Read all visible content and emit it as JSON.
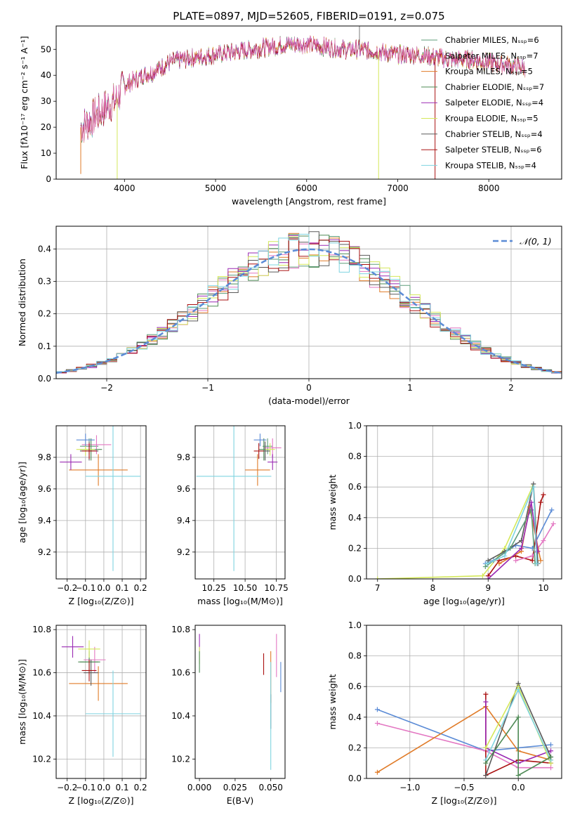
{
  "figure_title": "PLATE=0897, MJD=52605, FIBERID=0191, z=0.075",
  "colors": {
    "Chabrier MILES": "#5f9d7a",
    "Salpeter MILES": "#e377c2",
    "Kroupa MILES": "#e07b28",
    "Chabrier ELODIE": "#4e8a55",
    "Salpeter ELODIE": "#9a29b3",
    "Kroupa ELODIE": "#d4e85a",
    "Chabrier STELIB": "#5a5a5a",
    "Salpeter STELIB": "#aa1111",
    "Kroupa STELIB": "#7fd4e0",
    "normal": "#5b8bd6",
    "blue_extra": "#5b8bd6",
    "grid": "#b0b0b0"
  },
  "chart_data": [
    {
      "id": "spectrum",
      "type": "line",
      "title": "PLATE=0897, MJD=52605, FIBERID=0191, z=0.075",
      "xlabel": "wavelength [Angstrom, rest frame]",
      "ylabel": "Flux [fλ10⁻¹⁷ erg cm⁻² s⁻¹ A⁻¹]",
      "xlim": [
        3250,
        8800
      ],
      "ylim": [
        0,
        59
      ],
      "xticks": [
        4000,
        5000,
        6000,
        7000,
        8000
      ],
      "yticks": [
        0,
        10,
        20,
        30,
        40,
        50
      ],
      "grid": false,
      "legend": "top-right",
      "continuum": {
        "x": [
          3520,
          3600,
          3700,
          3800,
          3900,
          3950,
          4000,
          4100,
          4200,
          4300,
          4400,
          4500,
          4600,
          4800,
          5000,
          5200,
          5400,
          5600,
          5800,
          6000,
          6200,
          6400,
          6600,
          6800,
          7000,
          7200,
          7400,
          7600,
          7800,
          8000,
          8200,
          8400
        ],
        "y": [
          20,
          22,
          25,
          28,
          30,
          33,
          36,
          38,
          40,
          41,
          43,
          45,
          46,
          47,
          48,
          49,
          50,
          51,
          52,
          52,
          51,
          50,
          50,
          49,
          48,
          48,
          47,
          46,
          46,
          45,
          44,
          43
        ]
      },
      "series": [
        {
          "name": "Chabrier MILES, Nₛₛₚ=6"
        },
        {
          "name": "Salpeter MILES, Nₛₛₚ=7"
        },
        {
          "name": "Kroupa MILES, Nₛₛₚ=5"
        },
        {
          "name": "Chabrier ELODIE, Nₛₛₚ=7"
        },
        {
          "name": "Salpeter ELODIE, Nₛₛₚ=4"
        },
        {
          "name": "Kroupa ELODIE, Nₛₛₚ=5"
        },
        {
          "name": "Chabrier STELIB, Nₛₛₚ=4"
        },
        {
          "name": "Salpeter STELIB, Nₛₛₚ=6"
        },
        {
          "name": "Kroupa STELIB, Nₛₛₚ=4"
        }
      ]
    },
    {
      "id": "residuals",
      "type": "line",
      "xlabel": "(data-model)/error",
      "ylabel": "Normed distribution",
      "xlim": [
        -2.5,
        2.5
      ],
      "ylim": [
        0,
        0.47
      ],
      "xticks": [
        -2,
        -1,
        0,
        1,
        2
      ],
      "yticks": [
        0.0,
        0.1,
        0.2,
        0.3,
        0.4
      ],
      "grid": true,
      "legend": "top-right",
      "legend_label": "𝒩(0, 1)",
      "bin_width": 0.1
    },
    {
      "id": "z_age",
      "type": "scatter",
      "xlabel": "Z [log₁₀(Z/Z⊙)]",
      "ylabel": "age  [log₁₀(age/yr)]",
      "xlim": [
        -0.26,
        0.23
      ],
      "ylim": [
        9.03,
        10.0
      ],
      "xticks": [
        -0.2,
        -0.1,
        0.0,
        0.1,
        0.2
      ],
      "yticks": [
        9.2,
        9.4,
        9.6,
        9.8
      ],
      "grid": true,
      "points": [
        {
          "s": "Chabrier MILES",
          "x": -0.08,
          "y": 9.87,
          "xerr": 0.05,
          "yerr": 0.05
        },
        {
          "s": "Salpeter MILES",
          "x": -0.04,
          "y": 9.88,
          "xerr": 0.08,
          "yerr": 0.06
        },
        {
          "s": "Kroupa MILES",
          "x": -0.03,
          "y": 9.72,
          "xerr": 0.16,
          "yerr": 0.1
        },
        {
          "s": "Chabrier ELODIE",
          "x": -0.07,
          "y": 9.85,
          "xerr": 0.06,
          "yerr": 0.07
        },
        {
          "s": "Salpeter ELODIE",
          "x": -0.18,
          "y": 9.77,
          "xerr": 0.06,
          "yerr": 0.05
        },
        {
          "s": "Kroupa ELODIE",
          "x": -0.1,
          "y": 9.85,
          "xerr": 0.05,
          "yerr": 0.04
        },
        {
          "s": "Chabrier STELIB",
          "x": -0.08,
          "y": 9.84,
          "xerr": 0.05,
          "yerr": 0.06
        },
        {
          "s": "Salpeter STELIB",
          "x": -0.08,
          "y": 9.84,
          "xerr": 0.04,
          "yerr": 0.05
        },
        {
          "s": "Kroupa STELIB",
          "x": 0.05,
          "y": 9.68,
          "xerr": 0.15,
          "yerr": 0.6
        },
        {
          "s": "blue_extra",
          "x": -0.1,
          "y": 9.91,
          "xerr": 0.05,
          "yerr": 0.04
        }
      ]
    },
    {
      "id": "mass_age",
      "type": "scatter",
      "xlabel": "mass [log₁₀(M/M⊙)]",
      "xlim": [
        10.1,
        10.82
      ],
      "ylim": [
        9.03,
        10.0
      ],
      "xticks": [
        10.25,
        10.5,
        10.75
      ],
      "yticks": [
        9.2,
        9.4,
        9.6,
        9.8
      ],
      "grid": true,
      "points": [
        {
          "s": "Chabrier MILES",
          "x": 10.68,
          "y": 9.87,
          "xerr": 0.04,
          "yerr": 0.05
        },
        {
          "s": "Salpeter MILES",
          "x": 10.72,
          "y": 9.86,
          "xerr": 0.07,
          "yerr": 0.06
        },
        {
          "s": "Kroupa MILES",
          "x": 10.6,
          "y": 9.72,
          "xerr": 0.1,
          "yerr": 0.1
        },
        {
          "s": "Chabrier ELODIE",
          "x": 10.65,
          "y": 9.85,
          "xerr": 0.04,
          "yerr": 0.07
        },
        {
          "s": "Salpeter ELODIE",
          "x": 10.72,
          "y": 9.77,
          "xerr": 0.04,
          "yerr": 0.05
        },
        {
          "s": "Kroupa ELODIE",
          "x": 10.7,
          "y": 9.85,
          "xerr": 0.04,
          "yerr": 0.04
        },
        {
          "s": "Chabrier STELIB",
          "x": 10.66,
          "y": 9.84,
          "xerr": 0.04,
          "yerr": 0.06
        },
        {
          "s": "Salpeter STELIB",
          "x": 10.61,
          "y": 9.84,
          "xerr": 0.04,
          "yerr": 0.05
        },
        {
          "s": "Kroupa STELIB",
          "x": 10.41,
          "y": 9.68,
          "xerr": 0.3,
          "yerr": 0.6
        },
        {
          "s": "blue_extra",
          "x": 10.62,
          "y": 9.91,
          "xerr": 0.05,
          "yerr": 0.04
        }
      ]
    },
    {
      "id": "age_weight",
      "type": "line",
      "xlabel": "age  [log₁₀(age/yr)]",
      "ylabel": "mass weight",
      "xlim": [
        6.8,
        10.33
      ],
      "ylim": [
        0,
        1.0
      ],
      "xticks": [
        7,
        8,
        9,
        10
      ],
      "yticks": [
        0.0,
        0.2,
        0.4,
        0.6,
        0.8,
        1.0
      ],
      "grid": true,
      "series": [
        {
          "s": "Kroupa ELODIE",
          "x": [
            7.0,
            8.9,
            9.3,
            9.8
          ],
          "y": [
            0.0,
            0.02,
            0.2,
            0.6
          ]
        },
        {
          "s": "blue_extra",
          "x": [
            8.95,
            9.1,
            9.5,
            9.8,
            10.15
          ],
          "y": [
            0.1,
            0.12,
            0.22,
            0.2,
            0.45
          ]
        },
        {
          "s": "Chabrier STELIB",
          "x": [
            9.0,
            9.3,
            9.6,
            9.82,
            9.9
          ],
          "y": [
            0.12,
            0.18,
            0.25,
            0.62,
            0.1
          ]
        },
        {
          "s": "Salpeter STELIB",
          "x": [
            9.0,
            9.2,
            9.5,
            9.8,
            9.95,
            10.0
          ],
          "y": [
            0.02,
            0.12,
            0.15,
            0.12,
            0.5,
            0.55
          ]
        },
        {
          "s": "Salpeter MILES",
          "x": [
            9.5,
            9.8,
            10.0,
            10.18
          ],
          "y": [
            0.12,
            0.15,
            0.25,
            0.36
          ]
        },
        {
          "s": "Kroupa MILES",
          "x": [
            9.2,
            9.6,
            9.75,
            9.95
          ],
          "y": [
            0.1,
            0.18,
            0.47,
            0.12
          ]
        },
        {
          "s": "Chabrier MILES",
          "x": [
            8.95,
            9.4,
            9.78,
            9.85
          ],
          "y": [
            0.08,
            0.2,
            0.45,
            0.1
          ]
        },
        {
          "s": "Salpeter ELODIE",
          "x": [
            9.0,
            9.6,
            9.78,
            9.9
          ],
          "y": [
            0.0,
            0.2,
            0.5,
            0.18
          ]
        },
        {
          "s": "Kroupa STELIB",
          "x": [
            8.98,
            9.3,
            9.82,
            9.88
          ],
          "y": [
            0.1,
            0.15,
            0.6,
            0.1
          ]
        }
      ]
    },
    {
      "id": "z_mass",
      "type": "scatter",
      "xlabel": "Z [log₁₀(Z/Z⊙)]",
      "ylabel": "mass [log₁₀(M/M⊙)]",
      "xlim": [
        -0.26,
        0.23
      ],
      "ylim": [
        10.11,
        10.82
      ],
      "xticks": [
        -0.2,
        -0.1,
        0.0,
        0.1,
        0.2
      ],
      "yticks": [
        10.2,
        10.4,
        10.6,
        10.8
      ],
      "grid": true,
      "points": [
        {
          "s": "Chabrier MILES",
          "x": -0.08,
          "y": 10.65,
          "xerr": 0.05,
          "yerr": 0.06
        },
        {
          "s": "Salpeter MILES",
          "x": -0.05,
          "y": 10.66,
          "xerr": 0.06,
          "yerr": 0.06
        },
        {
          "s": "Kroupa MILES",
          "x": -0.03,
          "y": 10.55,
          "xerr": 0.16,
          "yerr": 0.08
        },
        {
          "s": "Chabrier ELODIE",
          "x": -0.08,
          "y": 10.65,
          "xerr": 0.06,
          "yerr": 0.05
        },
        {
          "s": "Salpeter ELODIE",
          "x": -0.17,
          "y": 10.72,
          "xerr": 0.06,
          "yerr": 0.05
        },
        {
          "s": "Kroupa ELODIE",
          "x": -0.08,
          "y": 10.71,
          "xerr": 0.06,
          "yerr": 0.04
        },
        {
          "s": "Chabrier STELIB",
          "x": -0.07,
          "y": 10.6,
          "xerr": 0.04,
          "yerr": 0.06
        },
        {
          "s": "Salpeter STELIB",
          "x": -0.08,
          "y": 10.61,
          "xerr": 0.04,
          "yerr": 0.05
        },
        {
          "s": "Kroupa STELIB",
          "x": 0.05,
          "y": 10.41,
          "xerr": 0.15,
          "yerr": 0.2
        }
      ]
    },
    {
      "id": "ebv_mass",
      "type": "scatter",
      "xlabel": "E(B-V)",
      "xlim": [
        -0.003,
        0.06
      ],
      "ylim": [
        10.11,
        10.82
      ],
      "xticks": [
        0.0,
        0.025,
        0.05
      ],
      "yticks": [
        10.2,
        10.4,
        10.6,
        10.8
      ],
      "grid": false,
      "points": [
        {
          "s": "Salpeter ELODIE",
          "x": 0.0,
          "y": 10.74,
          "xerr": 0.0,
          "yerr": 0.04
        },
        {
          "s": "Kroupa ELODIE",
          "x": 0.0,
          "y": 10.68,
          "xerr": 0.0,
          "yerr": 0.04
        },
        {
          "s": "Chabrier ELODIE",
          "x": 0.0,
          "y": 10.65,
          "xerr": 0.0,
          "yerr": 0.05
        },
        {
          "s": "Salpeter STELIB",
          "x": 0.045,
          "y": 10.64,
          "xerr": 0.0,
          "yerr": 0.05
        },
        {
          "s": "Kroupa MILES",
          "x": 0.05,
          "y": 10.58,
          "xerr": 0.0,
          "yerr": 0.12
        },
        {
          "s": "Chabrier STELIB",
          "x": 0.05,
          "y": 10.42,
          "xerr": 0.0,
          "yerr": 0.08
        },
        {
          "s": "Kroupa STELIB",
          "x": 0.05,
          "y": 10.4,
          "xerr": 0.0,
          "yerr": 0.25
        },
        {
          "s": "Salpeter MILES",
          "x": 0.054,
          "y": 10.68,
          "xerr": 0.0,
          "yerr": 0.1
        },
        {
          "s": "blue_extra",
          "x": 0.057,
          "y": 10.58,
          "xerr": 0.0,
          "yerr": 0.07
        }
      ]
    },
    {
      "id": "z_weight",
      "type": "line",
      "xlabel": "Z [log₁₀(Z/Z⊙)]",
      "ylabel": "mass weight",
      "xlim": [
        -1.4,
        0.4
      ],
      "ylim": [
        0,
        1.0
      ],
      "xticks": [
        -1.0,
        -0.5,
        0.0
      ],
      "yticks": [
        0.0,
        0.2,
        0.4,
        0.6,
        0.8,
        1.0
      ],
      "grid": true,
      "series": [
        {
          "s": "blue_extra",
          "x": [
            -1.3,
            -0.3,
            0.0,
            0.3
          ],
          "y": [
            0.45,
            0.18,
            0.2,
            0.22
          ]
        },
        {
          "s": "Salpeter MILES",
          "x": [
            -1.3,
            -0.3,
            0.0,
            0.3
          ],
          "y": [
            0.36,
            0.18,
            0.07,
            0.07
          ]
        },
        {
          "s": "Kroupa MILES",
          "x": [
            -1.3,
            -0.3,
            0.0,
            0.3
          ],
          "y": [
            0.04,
            0.47,
            0.18,
            0.12
          ]
        },
        {
          "s": "Salpeter STELIB",
          "x": [
            -0.3,
            -0.3,
            0.0,
            0.3
          ],
          "y": [
            0.55,
            0.02,
            0.12,
            0.1
          ]
        },
        {
          "s": "Salpeter ELODIE",
          "x": [
            -0.3,
            -0.3,
            0.0,
            0.3
          ],
          "y": [
            0.5,
            0.2,
            0.1,
            0.18
          ]
        },
        {
          "s": "Chabrier STELIB",
          "x": [
            -0.3,
            0.0,
            0.3
          ],
          "y": [
            0.02,
            0.62,
            0.14
          ]
        },
        {
          "s": "Kroupa ELODIE",
          "x": [
            -0.3,
            0.0,
            0.3
          ],
          "y": [
            0.2,
            0.6,
            0.1
          ]
        },
        {
          "s": "Kroupa STELIB",
          "x": [
            -0.3,
            0.0,
            0.3
          ],
          "y": [
            0.12,
            0.58,
            0.12
          ]
        },
        {
          "s": "Chabrier ELODIE",
          "x": [
            -0.3,
            0.0,
            0.0,
            0.3
          ],
          "y": [
            0.1,
            0.4,
            0.02,
            0.14
          ]
        }
      ]
    }
  ]
}
